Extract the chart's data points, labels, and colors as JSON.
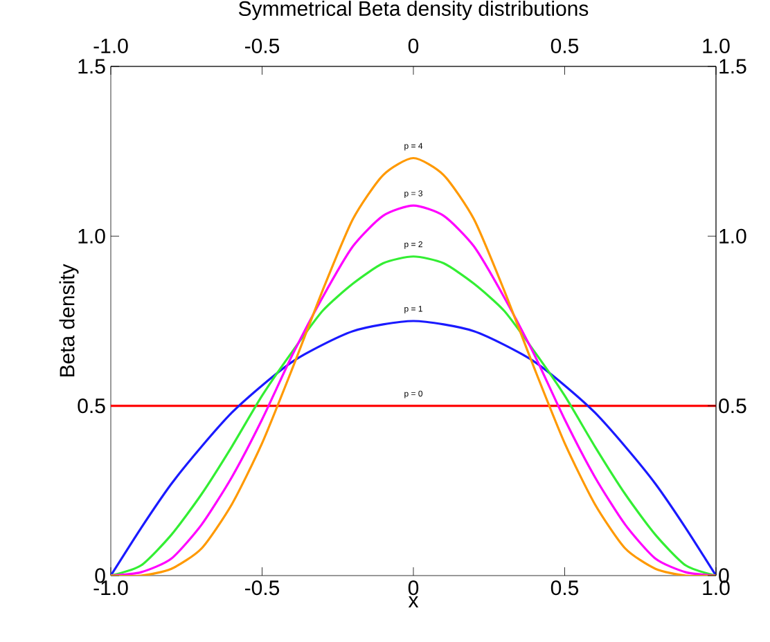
{
  "chart_data": {
    "type": "line",
    "title": "Symmetrical Beta density distributions",
    "xlabel": "x",
    "ylabel": "Beta density",
    "x": [
      -1.0,
      -0.9,
      -0.8,
      -0.7,
      -0.6,
      -0.5,
      -0.4,
      -0.3,
      -0.2,
      -0.1,
      0.0,
      0.1,
      0.2,
      0.3,
      0.4,
      0.5,
      0.6,
      0.7,
      0.8,
      0.9,
      1.0
    ],
    "series": [
      {
        "name": "p = 0",
        "color": "#ff0000",
        "values": [
          0.5,
          0.5,
          0.5,
          0.5,
          0.5,
          0.5,
          0.5,
          0.5,
          0.5,
          0.5,
          0.5,
          0.5,
          0.5,
          0.5,
          0.5,
          0.5,
          0.5,
          0.5,
          0.5,
          0.5,
          0.5
        ]
      },
      {
        "name": "p = 1",
        "color": "#1a1aff",
        "values": [
          0,
          0.14,
          0.27,
          0.38,
          0.48,
          0.56,
          0.63,
          0.68,
          0.72,
          0.74,
          0.75,
          0.74,
          0.72,
          0.68,
          0.63,
          0.56,
          0.48,
          0.38,
          0.27,
          0.14,
          0
        ]
      },
      {
        "name": "p = 2",
        "color": "#33ee33",
        "values": [
          0,
          0.03,
          0.12,
          0.24,
          0.38,
          0.53,
          0.66,
          0.78,
          0.86,
          0.92,
          0.94,
          0.92,
          0.86,
          0.78,
          0.66,
          0.53,
          0.38,
          0.24,
          0.12,
          0.03,
          0
        ]
      },
      {
        "name": "p = 3",
        "color": "#ff00ff",
        "values": [
          0,
          0.01,
          0.05,
          0.15,
          0.29,
          0.46,
          0.65,
          0.82,
          0.97,
          1.06,
          1.09,
          1.06,
          0.97,
          0.82,
          0.65,
          0.46,
          0.29,
          0.15,
          0.05,
          0.01,
          0
        ]
      },
      {
        "name": "p = 4",
        "color": "#ff9900",
        "values": [
          0,
          0,
          0.02,
          0.08,
          0.21,
          0.39,
          0.61,
          0.84,
          1.05,
          1.18,
          1.23,
          1.18,
          1.05,
          0.84,
          0.61,
          0.39,
          0.21,
          0.08,
          0.02,
          0,
          0
        ]
      }
    ],
    "xlim": [
      -1,
      1
    ],
    "ylim": [
      0,
      1.5
    ],
    "x2lim": [
      -1,
      1
    ],
    "y2lim": [
      0,
      1.5
    ],
    "xticks": [
      {
        "value": -1,
        "label": "-1.0"
      },
      -0.5,
      0,
      0.5,
      {
        "value": 1,
        "label": "1.0"
      }
    ],
    "x2ticks": [
      {
        "value": -1,
        "label": "-1.0"
      },
      -0.5,
      0,
      0.5,
      {
        "value": 1,
        "label": "1.0"
      }
    ],
    "yticks": [
      0,
      0.5,
      {
        "value": 1,
        "label": "1.0"
      },
      1.5
    ],
    "y2ticks": [
      0,
      0.5,
      {
        "value": 1,
        "label": "1.0"
      },
      1.5
    ],
    "grid": false,
    "marker": "none",
    "line_style": "solid"
  }
}
